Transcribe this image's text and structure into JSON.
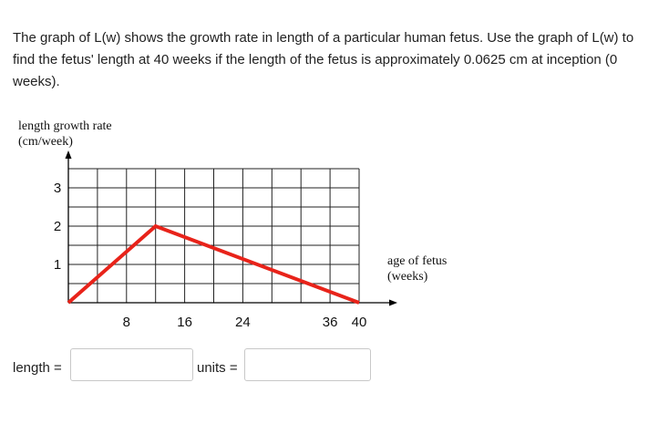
{
  "question": {
    "text": "The graph of L(w) shows the growth rate in length of a particular human fetus. Use the graph of L(w) to find the fetus' length at 40 weeks if the length of the fetus is approximately 0.0625 cm at inception (0 weeks)."
  },
  "chart_data": {
    "type": "line",
    "ylabel": [
      "length growth rate",
      "(cm/week)"
    ],
    "xlabel": [
      "age of fetus",
      "(weeks)"
    ],
    "xlim": [
      0,
      40
    ],
    "ylim": [
      0,
      3.5
    ],
    "x_ticks": [
      8,
      16,
      24,
      36,
      40
    ],
    "y_ticks": [
      1,
      2,
      3
    ],
    "x_tick_labels": [
      "8",
      "16",
      "24",
      "36",
      "40"
    ],
    "y_tick_labels": [
      "1",
      "2",
      "3"
    ],
    "grid": true,
    "series": [
      {
        "x": [
          0,
          12,
          40
        ],
        "y": [
          0,
          2,
          0
        ],
        "color": "#e8231a"
      }
    ]
  },
  "answer": {
    "length_label": "length =",
    "length_value": "",
    "units_label": "units =",
    "units_value": ""
  }
}
